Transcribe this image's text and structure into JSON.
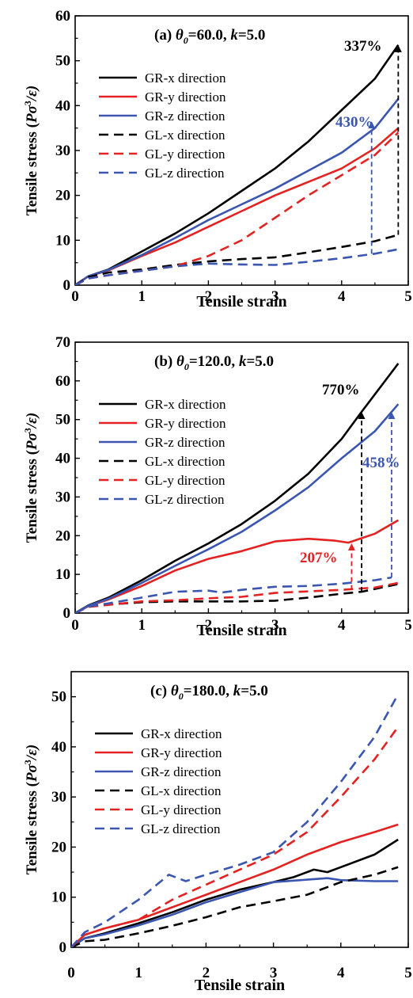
{
  "chart_data": [
    {
      "type": "line",
      "title": "(a) θ0=60.0, k=5.0",
      "title_parts": {
        "label": "(a)",
        "theta": "θ",
        "theta_sub": "0",
        "theta_value": "=60.0, ",
        "k": "k",
        "k_value": "=5.0"
      },
      "xlabel": "Tensile strain",
      "ylabel": "Tensile stress (Pσ3/ε)",
      "ylabel_parts": {
        "prefix": "Tensile stress (",
        "P": "P",
        "sigma": "σ",
        "exp": "3",
        "suffix": "/ε)"
      },
      "xlim": [
        0,
        5
      ],
      "ylim": [
        0,
        60
      ],
      "xticks": [
        "0",
        "1",
        "2",
        "3",
        "4",
        "5"
      ],
      "yticks": [
        "0",
        "10",
        "20",
        "30",
        "40",
        "50",
        "60"
      ],
      "legend_position": "top-left",
      "series": [
        {
          "name": "GR-x direction",
          "color": "#000000",
          "dash": false,
          "x": [
            0,
            0.2,
            0.5,
            1.0,
            1.5,
            2.0,
            2.5,
            3.0,
            3.5,
            4.0,
            4.5,
            4.85
          ],
          "y": [
            0,
            2,
            3.5,
            7.5,
            11.5,
            16,
            21,
            26,
            32,
            39,
            46,
            53.5
          ]
        },
        {
          "name": "GR-y direction",
          "color": "#e32222",
          "dash": false,
          "x": [
            0,
            0.2,
            0.5,
            1.0,
            1.5,
            2.0,
            2.5,
            3.0,
            3.5,
            4.0,
            4.5,
            4.85
          ],
          "y": [
            0,
            2,
            3.3,
            6.5,
            9.5,
            13,
            16.5,
            20,
            23,
            26,
            30.5,
            35
          ]
        },
        {
          "name": "GR-z direction",
          "color": "#3a56b0",
          "dash": false,
          "x": [
            0,
            0.2,
            0.5,
            1.0,
            1.5,
            2.0,
            2.5,
            3.0,
            3.5,
            4.0,
            4.5,
            4.85
          ],
          "y": [
            0,
            2,
            3.4,
            6.7,
            10.5,
            14.5,
            18,
            21.5,
            25.5,
            29.5,
            35,
            41.5
          ]
        },
        {
          "name": "GL-x direction",
          "color": "#000000",
          "dash": true,
          "x": [
            0,
            0.2,
            0.5,
            1.0,
            1.5,
            2.0,
            2.5,
            3.0,
            3.5,
            4.0,
            4.5,
            4.85
          ],
          "y": [
            0,
            1.8,
            2.8,
            3.5,
            4.5,
            5.3,
            5.8,
            6.2,
            7.3,
            8.5,
            9.8,
            11.2
          ]
        },
        {
          "name": "GL-y direction",
          "color": "#e32222",
          "dash": true,
          "x": [
            0,
            0.2,
            0.5,
            1.0,
            1.5,
            2.0,
            2.5,
            3.0,
            3.5,
            4.0,
            4.5,
            4.85
          ],
          "y": [
            0,
            1.5,
            2.2,
            3.2,
            4.2,
            6.5,
            10,
            15,
            20,
            24.5,
            29,
            34
          ]
        },
        {
          "name": "GL-z direction",
          "color": "#3a56b0",
          "dash": true,
          "x": [
            0,
            0.2,
            0.5,
            1.0,
            1.5,
            2.0,
            2.5,
            3.0,
            3.5,
            4.0,
            4.5,
            4.85
          ],
          "y": [
            0,
            1.5,
            2.2,
            3.2,
            4.2,
            4.8,
            4.6,
            4.5,
            5.2,
            6,
            7,
            8
          ]
        }
      ],
      "annotations": [
        {
          "text": "337%",
          "color": "#000000",
          "x": 4.85,
          "y_from": 11.2,
          "y_to": 53.5,
          "arrow_color": "#000000"
        },
        {
          "text": "430%",
          "color": "#3a56b0",
          "x": 4.45,
          "y_from": 7,
          "y_to": 36.5,
          "arrow_color": "#3a56b0"
        }
      ]
    },
    {
      "type": "line",
      "title": "(b) θ0=120.0, k=5.0",
      "title_parts": {
        "label": "(b)",
        "theta": "θ",
        "theta_sub": "0",
        "theta_value": "=120.0, ",
        "k": "k",
        "k_value": "=5.0"
      },
      "xlabel": "Tensile strain",
      "ylabel": "Tensile stress (Pσ3/ε)",
      "ylabel_parts": {
        "prefix": "Tensile stress (",
        "P": "P",
        "sigma": "σ",
        "exp": "3",
        "suffix": "/ε)"
      },
      "xlim": [
        0,
        5
      ],
      "ylim": [
        0,
        70
      ],
      "xticks": [
        "0",
        "1",
        "2",
        "3",
        "4",
        "5"
      ],
      "yticks": [
        "0",
        "10",
        "20",
        "30",
        "40",
        "50",
        "60",
        "70"
      ],
      "legend_position": "top-left",
      "series": [
        {
          "name": "GR-x direction",
          "color": "#000000",
          "dash": false,
          "x": [
            0,
            0.2,
            0.5,
            1.0,
            1.5,
            2.0,
            2.5,
            3.0,
            3.5,
            4.0,
            4.3,
            4.85
          ],
          "y": [
            0,
            2,
            4,
            8.5,
            13.5,
            18,
            23,
            29,
            36,
            45,
            52,
            64.5
          ]
        },
        {
          "name": "GR-y direction",
          "color": "#e32222",
          "dash": false,
          "x": [
            0,
            0.2,
            0.5,
            1.0,
            1.5,
            2.0,
            2.5,
            3.0,
            3.5,
            3.9,
            4.1,
            4.5,
            4.85
          ],
          "y": [
            0,
            1.8,
            3.5,
            7,
            11,
            14,
            16,
            18.5,
            19.2,
            18.7,
            18.2,
            20.5,
            24
          ]
        },
        {
          "name": "GR-z direction",
          "color": "#3a56b0",
          "dash": false,
          "x": [
            0,
            0.2,
            0.5,
            1.0,
            1.5,
            2.0,
            2.5,
            3.0,
            3.5,
            4.0,
            4.5,
            4.85
          ],
          "y": [
            0,
            1.9,
            3.7,
            7.8,
            12.2,
            16.5,
            21,
            26.5,
            32.5,
            40,
            47,
            54
          ]
        },
        {
          "name": "GL-x direction",
          "color": "#000000",
          "dash": true,
          "x": [
            0,
            0.2,
            0.5,
            1.0,
            1.5,
            2.0,
            2.5,
            3.0,
            3.5,
            4.0,
            4.3,
            4.85
          ],
          "y": [
            0,
            1.7,
            2.2,
            2.8,
            3,
            3,
            3,
            3.2,
            4,
            5,
            5.5,
            7.5
          ]
        },
        {
          "name": "GL-y direction",
          "color": "#e32222",
          "dash": true,
          "x": [
            0,
            0.2,
            0.5,
            1.0,
            1.5,
            2.0,
            2.5,
            3.0,
            3.5,
            4.0,
            4.5,
            4.85
          ],
          "y": [
            0,
            1.6,
            2.1,
            3,
            3.3,
            3.8,
            4.2,
            5.2,
            5.6,
            6,
            6.6,
            7.8
          ]
        },
        {
          "name": "GL-z direction",
          "color": "#3a56b0",
          "dash": true,
          "x": [
            0,
            0.2,
            0.5,
            1.0,
            1.5,
            2.0,
            2.2,
            2.5,
            3.0,
            3.5,
            4.0,
            4.5,
            4.75
          ],
          "y": [
            0,
            1.7,
            2.5,
            4,
            5.5,
            5.8,
            5.3,
            6,
            6.8,
            7,
            7.6,
            8.5,
            9.2
          ]
        }
      ],
      "annotations": [
        {
          "text": "770%",
          "color": "#000000",
          "x": 4.3,
          "y_from": 5.5,
          "y_to": 52,
          "arrow_color": "#000000"
        },
        {
          "text": "458%",
          "color": "#3a56b0",
          "x": 4.75,
          "y_from": 9.2,
          "y_to": 52,
          "arrow_color": "#3a56b0"
        },
        {
          "text": "207%",
          "color": "#e32222",
          "x": 4.15,
          "y_from": 6,
          "y_to": 18,
          "arrow_color": "#e32222"
        }
      ]
    },
    {
      "type": "line",
      "title": "(c) θ0=180.0, k=5.0",
      "title_parts": {
        "label": "(c)",
        "theta": "θ",
        "theta_sub": "0",
        "theta_value": "=180.0, ",
        "k": "k",
        "k_value": "=5.0"
      },
      "xlabel": "Tensile strain",
      "ylabel": "Tensile stress (Pσ3/ε)",
      "ylabel_parts": {
        "prefix": "Tensile stress (",
        "P": "P",
        "sigma": "σ",
        "exp": "3",
        "suffix": "/ε)"
      },
      "xlim": [
        0,
        5
      ],
      "ylim": [
        0,
        55
      ],
      "xticks": [
        "0",
        "1",
        "2",
        "3",
        "4",
        "5"
      ],
      "yticks": [
        "0",
        "10",
        "20",
        "30",
        "40",
        "50"
      ],
      "legend_position": "top-left",
      "series": [
        {
          "name": "GR-x direction",
          "color": "#000000",
          "dash": false,
          "x": [
            0,
            0.2,
            0.5,
            1.0,
            1.5,
            2.0,
            2.5,
            3.0,
            3.3,
            3.6,
            3.8,
            4.0,
            4.5,
            4.85
          ],
          "y": [
            0,
            1.8,
            2.8,
            4.8,
            7,
            9.5,
            11.5,
            13,
            14,
            15.5,
            15,
            16,
            18.5,
            21.5
          ]
        },
        {
          "name": "GR-y direction",
          "color": "#e32222",
          "dash": false,
          "x": [
            0,
            0.2,
            0.5,
            1.0,
            1.5,
            2.0,
            2.5,
            3.0,
            3.5,
            4.0,
            4.5,
            4.85
          ],
          "y": [
            0,
            2.5,
            3.8,
            5.5,
            8,
            10.5,
            13,
            15.5,
            18.5,
            21,
            23,
            24.5
          ]
        },
        {
          "name": "GR-z direction",
          "color": "#3a56b0",
          "dash": false,
          "x": [
            0,
            0.2,
            0.5,
            1.0,
            1.5,
            2.0,
            2.5,
            3.0,
            3.5,
            3.8,
            4.0,
            4.5,
            4.85
          ],
          "y": [
            0,
            1.8,
            2.6,
            4.4,
            6.5,
            9,
            11,
            13,
            13.5,
            13.8,
            13.4,
            13.2,
            13.2
          ]
        },
        {
          "name": "GL-x direction",
          "color": "#000000",
          "dash": true,
          "x": [
            0,
            0.2,
            0.5,
            1.0,
            1.5,
            2.0,
            2.5,
            3.0,
            3.5,
            4.0,
            4.5,
            4.85
          ],
          "y": [
            0,
            1.2,
            1.5,
            2.8,
            4.3,
            6,
            8,
            9.2,
            10.5,
            13,
            14.5,
            16
          ]
        },
        {
          "name": "GL-y direction",
          "color": "#e32222",
          "dash": true,
          "x": [
            0,
            0.2,
            0.5,
            1.0,
            1.5,
            2.0,
            2.5,
            3.0,
            3.5,
            4.0,
            4.5,
            4.85
          ],
          "y": [
            0,
            2.5,
            3.8,
            5.5,
            9.5,
            12.5,
            15.5,
            18.5,
            23,
            30,
            37.5,
            44
          ]
        },
        {
          "name": "GL-z direction",
          "color": "#3a56b0",
          "dash": true,
          "x": [
            0,
            0.2,
            0.5,
            1.0,
            1.45,
            1.7,
            2.0,
            2.5,
            3.0,
            3.5,
            4.0,
            4.5,
            4.85
          ],
          "y": [
            0,
            3,
            5,
            9.5,
            14.5,
            13.2,
            14.5,
            16.5,
            19,
            25,
            33,
            42,
            50.5
          ]
        }
      ],
      "annotations": []
    }
  ]
}
